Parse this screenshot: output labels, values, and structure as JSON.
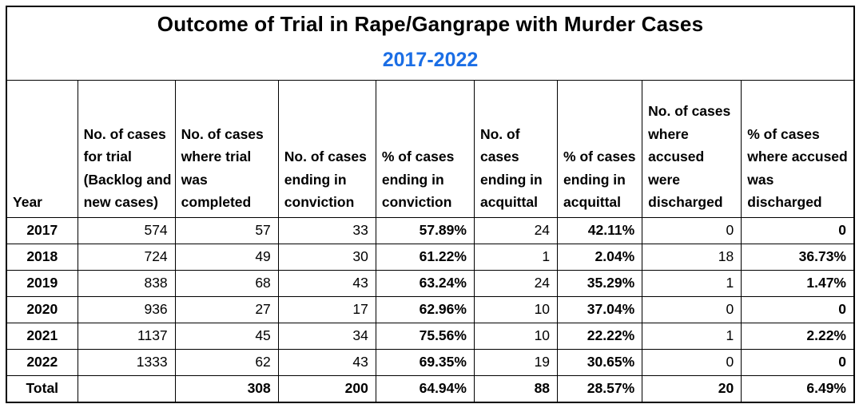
{
  "title": "Outcome of Trial in Rape/Gangrape with Murder Cases",
  "subtitle": "2017-2022",
  "colors": {
    "subtitle_blue": "#1b6ee5",
    "text": "#000000",
    "grid": "#000000",
    "background": "#ffffff"
  },
  "chart_data": {
    "type": "table",
    "title": "Outcome of Trial in Rape/Gangrape with Murder Cases",
    "subtitle": "2017-2022",
    "grid": true,
    "columns": [
      "Year",
      "No. of cases for trial (Backlog and new cases)",
      "No. of cases where trial was completed",
      "No. of cases ending in conviction",
      "% of cases ending in conviction",
      "No. of cases ending in acquittal",
      "% of cases ending in acquittal",
      "No. of cases where accused were discharged",
      "% of cases where accused was discharged"
    ],
    "rows": [
      [
        "2017",
        "574",
        "57",
        "33",
        "57.89%",
        "24",
        "42.11%",
        "0",
        "0"
      ],
      [
        "2018",
        "724",
        "49",
        "30",
        "61.22%",
        "1",
        "2.04%",
        "18",
        "36.73%"
      ],
      [
        "2019",
        "838",
        "68",
        "43",
        "63.24%",
        "24",
        "35.29%",
        "1",
        "1.47%"
      ],
      [
        "2020",
        "936",
        "27",
        "17",
        "62.96%",
        "10",
        "37.04%",
        "0",
        "0"
      ],
      [
        "2021",
        "1137",
        "45",
        "34",
        "75.56%",
        "10",
        "22.22%",
        "1",
        "2.22%"
      ],
      [
        "2022",
        "1333",
        "62",
        "43",
        "69.35%",
        "19",
        "30.65%",
        "0",
        "0"
      ],
      [
        "Total",
        "",
        "308",
        "200",
        "64.94%",
        "88",
        "28.57%",
        "20",
        "6.49%"
      ]
    ]
  }
}
